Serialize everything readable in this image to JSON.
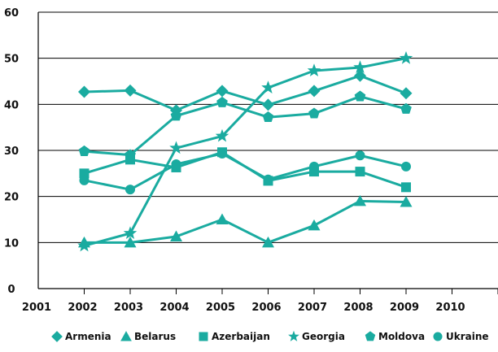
{
  "chart_data": {
    "type": "line",
    "title": "",
    "xlabel": "",
    "ylabel": "",
    "x_ticks": [
      "2001",
      "2002",
      "2003",
      "2004",
      "2005",
      "2006",
      "2007",
      "2008",
      "2009",
      "2010"
    ],
    "x": [
      2002,
      2003,
      2004,
      2005,
      2006,
      2007,
      2008,
      2009
    ],
    "ylim": [
      0,
      60
    ],
    "y_ticks": [
      0,
      10,
      20,
      30,
      40,
      50,
      60
    ],
    "grid": "horizontal",
    "legend_position": "bottom",
    "series_color": "#1aaba0",
    "series": [
      {
        "name": "Armenia",
        "marker": "diamond",
        "values": [
          42.7,
          43.0,
          38.7,
          42.9,
          39.9,
          42.9,
          46.2,
          42.4
        ]
      },
      {
        "name": "Belarus",
        "marker": "triangle",
        "values": [
          10.0,
          10.0,
          11.3,
          15.0,
          10.0,
          13.7,
          19.0,
          18.8
        ]
      },
      {
        "name": "Azerbaijan",
        "marker": "square",
        "values": [
          25.0,
          28.0,
          26.3,
          29.6,
          23.4,
          25.4,
          25.4,
          22.0
        ]
      },
      {
        "name": "Georgia",
        "marker": "star",
        "values": [
          9.3,
          12.0,
          30.5,
          33.1,
          43.6,
          47.3,
          48.0,
          50.0
        ]
      },
      {
        "name": "Moldova",
        "marker": "pentagon",
        "values": [
          29.8,
          29.0,
          37.5,
          40.4,
          37.2,
          38.0,
          41.7,
          39.0
        ]
      },
      {
        "name": "Ukraine",
        "marker": "circle",
        "values": [
          23.5,
          21.5,
          27.0,
          29.3,
          23.7,
          26.5,
          28.9,
          26.5
        ]
      }
    ]
  }
}
